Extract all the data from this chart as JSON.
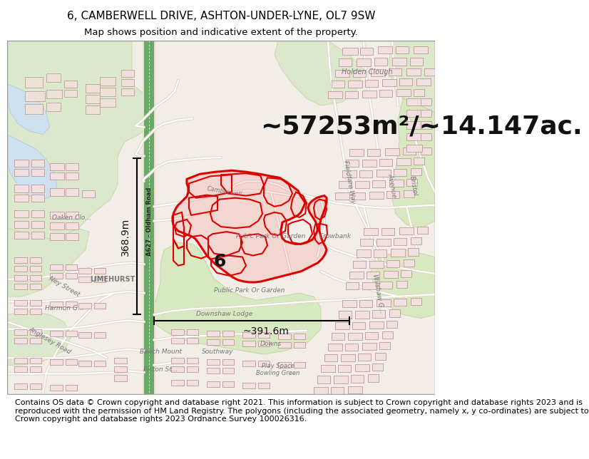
{
  "title_line1": "6, CAMBERWELL DRIVE, ASHTON-UNDER-LYNE, OL7 9SW",
  "title_line2": "Map shows position and indicative extent of the property.",
  "area_text": "~57253m²/~14.147ac.",
  "dim_horizontal": "~391.6m",
  "dim_vertical": "368.9m",
  "label_center": "6",
  "road_label": "A627 - Oldham Road",
  "footer_text": "Contains OS data © Crown copyright and database right 2021. This information is subject to Crown copyright and database rights 2023 and is reproduced with the permission of HM Land Registry. The polygons (including the associated geometry, namely x, y co-ordinates) are subject to Crown copyright and database rights 2023 Ordnance Survey 100026316.",
  "map_bg": "#f2ede8",
  "header_bg": "#ffffff",
  "footer_bg": "#ffffff",
  "boundary_color": "#dd0000",
  "road_green_color": "#5a9960",
  "road_green_dark": "#3a7040",
  "dim_line_color": "#000000",
  "title_fontsize": 11,
  "subtitle_fontsize": 9.5,
  "area_fontsize": 26,
  "footer_fontsize": 8,
  "label_fontsize": 18,
  "dim_fontsize": 10,
  "map_label_color": "#777777",
  "map_label_size": 7,
  "building_fill": "#f5e8e8",
  "building_edge": "#c09090",
  "building_fill2": "#ece0e0",
  "green_fill": "#d8e8c8",
  "green_fill2": "#cce0b8",
  "water_fill": "#cce0f0",
  "road_bg": "#ffffff",
  "road_minor": "#e8e0d0"
}
